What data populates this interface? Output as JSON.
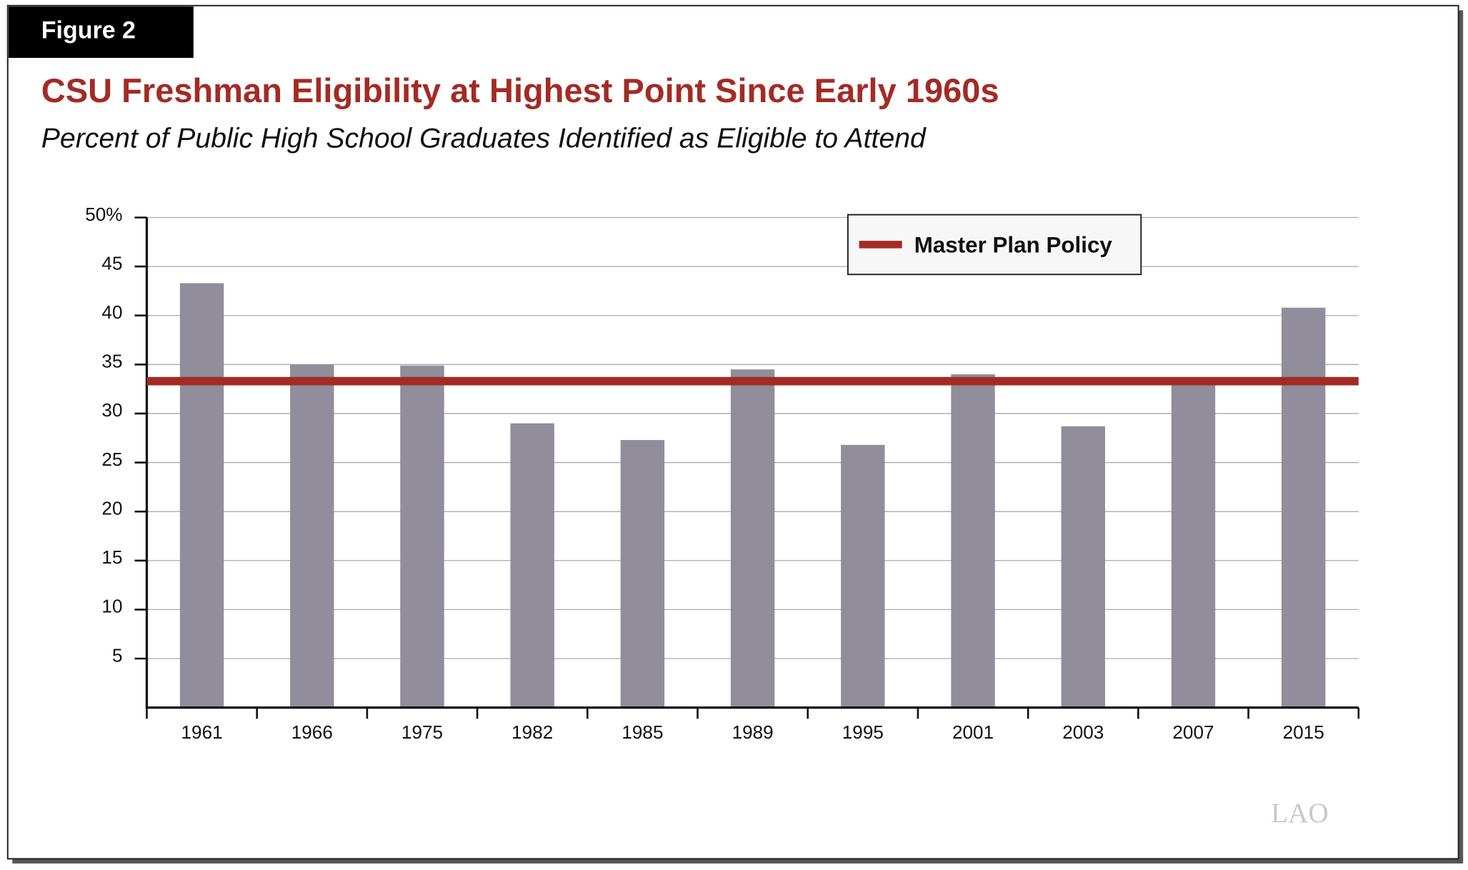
{
  "figure_label": "Figure 2",
  "logo": "LAO",
  "chart_data": {
    "type": "bar",
    "title": "CSU Freshman Eligibility at Highest Point Since Early 1960s",
    "subtitle": "Percent of Public High School Graduates Identified as Eligible to Attend",
    "categories": [
      "1961",
      "1966",
      "1975",
      "1982",
      "1985",
      "1989",
      "1995",
      "2001",
      "2003",
      "2007",
      "2015"
    ],
    "values": [
      43.3,
      35.0,
      34.9,
      29.0,
      27.3,
      34.5,
      26.8,
      34.0,
      28.7,
      33.0,
      40.8
    ],
    "color": "#918d9b",
    "reference_line": {
      "name": "Master Plan Policy",
      "value": 33.3,
      "color": "#a32b24"
    },
    "ylim": [
      0,
      50
    ],
    "yticks": [
      5,
      10,
      15,
      20,
      25,
      30,
      35,
      40,
      45,
      {
        "value": 50,
        "label": "50%"
      }
    ],
    "grid": true,
    "legend_position": "upper right"
  }
}
